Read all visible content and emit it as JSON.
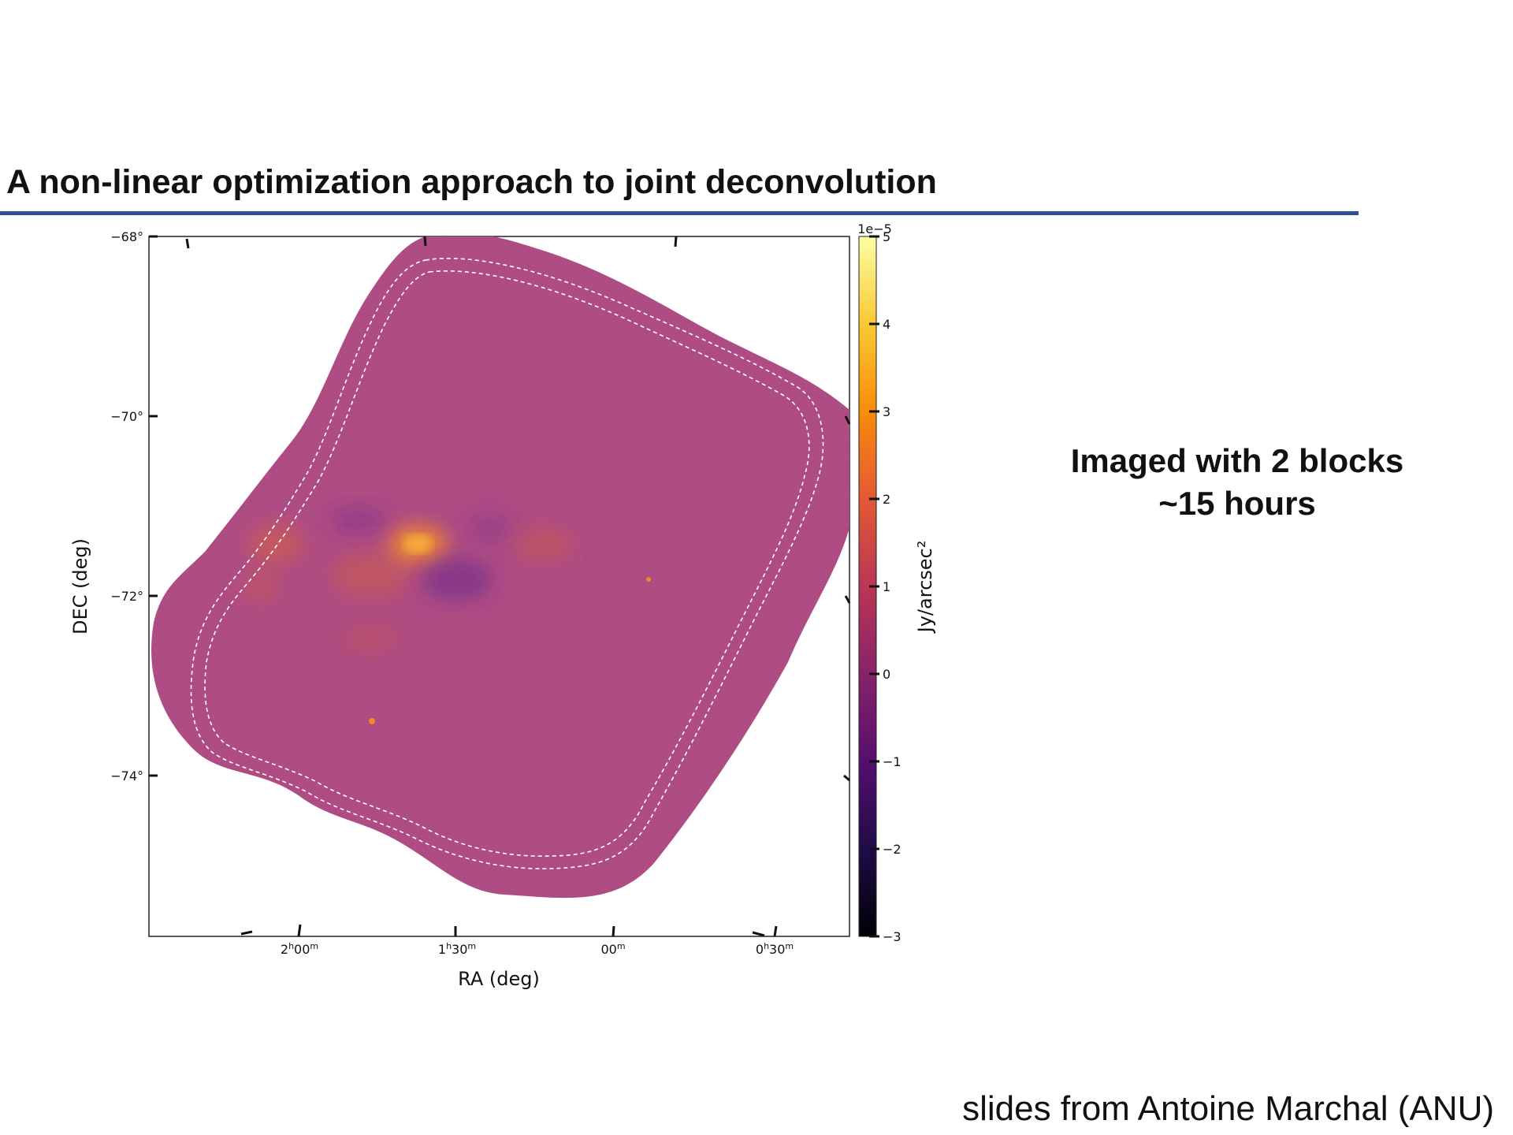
{
  "slide": {
    "title": "A non-linear optimization approach to joint deconvolution",
    "note_line1": "Imaged with 2 blocks",
    "note_line2": "~15 hours",
    "credit": "slides from Antoine Marchal (ANU)"
  },
  "figure": {
    "x_axis_label": "RA (deg)",
    "y_axis_label": "DEC (deg)",
    "x_ticks": [
      {
        "h": "2",
        "m": "00"
      },
      {
        "h": "1",
        "m": "30"
      },
      {
        "h": "",
        "m": "00"
      },
      {
        "h": "0",
        "m": "30"
      }
    ],
    "y_ticks": [
      "−68°",
      "−70°",
      "−72°",
      "−74°"
    ],
    "colorbar": {
      "label": "Jy/arcsec²",
      "exponent_label": "1e−5",
      "ticks": [
        "5",
        "4",
        "3",
        "2",
        "1",
        "0",
        "−1",
        "−2",
        "−3"
      ],
      "min": -3,
      "max": 5,
      "colormap": "inferno"
    },
    "colors": {
      "map_fill": "#a7417c",
      "emission": "#f08a2a",
      "absorption": "#6a2a8e",
      "contour": "#ffffff"
    }
  }
}
